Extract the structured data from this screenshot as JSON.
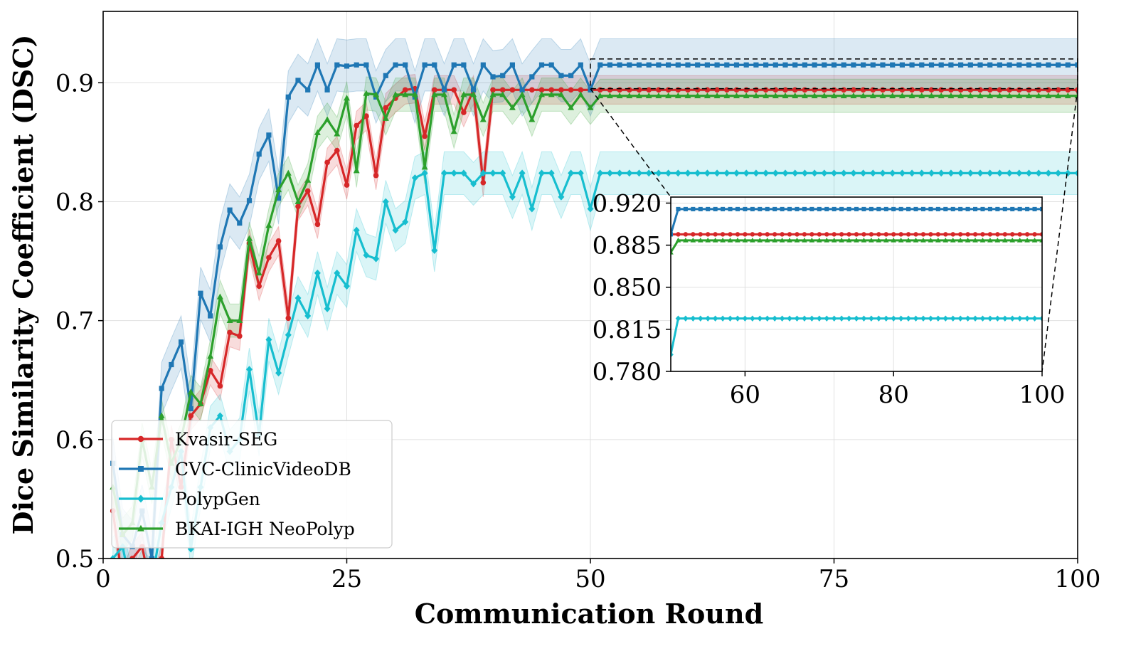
{
  "chart_data": {
    "type": "line",
    "title": "",
    "xlabel": "Communication Round",
    "ylabel": "Dice Similarity Coefficient (DSC)",
    "xlim": [
      0,
      100
    ],
    "ylim": [
      0.5,
      0.96
    ],
    "xticks": [
      "0",
      "25",
      "50",
      "75",
      "100"
    ],
    "yticks": [
      "0.5",
      "0.6",
      "0.7",
      "0.8",
      "0.9"
    ],
    "grid": true,
    "legend_position": "lower-left",
    "series": [
      {
        "name": "Kvasir-SEG",
        "color": "#d62728",
        "marker": "circle",
        "x": [
          1,
          2,
          3,
          4,
          5,
          6,
          7,
          8,
          9,
          10,
          11,
          12,
          13,
          14,
          15,
          16,
          17,
          18,
          19,
          20,
          21,
          22,
          23,
          24,
          25,
          26,
          27,
          28,
          29,
          30,
          31,
          32,
          33,
          34,
          35,
          36,
          37,
          38,
          39,
          40,
          41,
          42,
          43,
          44,
          45,
          46,
          47,
          48,
          49,
          50
        ],
        "y": [
          0.54,
          0.48,
          0.5,
          0.51,
          0.47,
          0.5,
          0.6,
          0.56,
          0.62,
          0.63,
          0.658,
          0.645,
          0.69,
          0.687,
          0.765,
          0.729,
          0.753,
          0.767,
          0.702,
          0.796,
          0.809,
          0.781,
          0.833,
          0.843,
          0.814,
          0.864,
          0.872,
          0.822,
          0.879,
          0.887,
          0.894,
          0.895,
          0.855,
          0.894,
          0.894,
          0.894,
          0.875,
          0.894,
          0.816,
          0.894,
          0.894,
          0.894,
          0.894,
          0.894,
          0.894,
          0.894,
          0.894,
          0.894,
          0.894,
          0.894
        ],
        "band": 0.012,
        "plateau_start": 50,
        "plateau_end": 100,
        "plateau": 0.894
      },
      {
        "name": "CVC-ClinicVideoDB",
        "color": "#1f77b4",
        "marker": "square",
        "x": [
          1,
          2,
          3,
          4,
          5,
          6,
          7,
          8,
          9,
          10,
          11,
          12,
          13,
          14,
          15,
          16,
          17,
          18,
          19,
          20,
          21,
          22,
          23,
          24,
          25,
          26,
          27,
          28,
          29,
          30,
          31,
          32,
          33,
          34,
          35,
          36,
          37,
          38,
          39,
          40,
          41,
          42,
          43,
          44,
          45,
          46,
          47,
          48,
          49,
          50
        ],
        "y": [
          0.58,
          0.52,
          0.51,
          0.54,
          0.5,
          0.643,
          0.663,
          0.682,
          0.626,
          0.723,
          0.704,
          0.762,
          0.793,
          0.782,
          0.801,
          0.84,
          0.856,
          0.803,
          0.888,
          0.902,
          0.894,
          0.915,
          0.894,
          0.915,
          0.914,
          0.915,
          0.915,
          0.888,
          0.906,
          0.915,
          0.915,
          0.888,
          0.915,
          0.915,
          0.894,
          0.915,
          0.915,
          0.894,
          0.915,
          0.905,
          0.906,
          0.915,
          0.894,
          0.905,
          0.915,
          0.915,
          0.906,
          0.906,
          0.915,
          0.894
        ],
        "band": 0.022,
        "plateau_start": 50,
        "plateau_end": 100,
        "plateau": 0.915
      },
      {
        "name": "PolypGen",
        "color": "#17becf",
        "marker": "diamond",
        "x": [
          1,
          2,
          3,
          4,
          5,
          6,
          7,
          8,
          9,
          10,
          11,
          12,
          13,
          14,
          15,
          16,
          17,
          18,
          19,
          20,
          21,
          22,
          23,
          24,
          25,
          26,
          27,
          28,
          29,
          30,
          31,
          32,
          33,
          34,
          35,
          36,
          37,
          38,
          39,
          40,
          41,
          42,
          43,
          44,
          45,
          46,
          47,
          48,
          49,
          50
        ],
        "y": [
          0.5,
          0.51,
          0.47,
          0.49,
          0.48,
          0.53,
          0.56,
          0.59,
          0.508,
          0.56,
          0.61,
          0.62,
          0.59,
          0.6,
          0.659,
          0.604,
          0.684,
          0.656,
          0.688,
          0.719,
          0.704,
          0.74,
          0.71,
          0.74,
          0.729,
          0.776,
          0.755,
          0.752,
          0.8,
          0.776,
          0.783,
          0.82,
          0.824,
          0.759,
          0.824,
          0.824,
          0.824,
          0.815,
          0.824,
          0.824,
          0.824,
          0.804,
          0.824,
          0.794,
          0.824,
          0.824,
          0.804,
          0.824,
          0.824,
          0.794
        ],
        "band": 0.018,
        "plateau_start": 50,
        "plateau_end": 100,
        "plateau": 0.824
      },
      {
        "name": "BKAI-IGH NeoPolyp",
        "color": "#2ca02c",
        "marker": "triangle",
        "x": [
          1,
          2,
          3,
          4,
          5,
          6,
          7,
          8,
          9,
          10,
          11,
          12,
          13,
          14,
          15,
          16,
          17,
          18,
          19,
          20,
          21,
          22,
          23,
          24,
          25,
          26,
          27,
          28,
          29,
          30,
          31,
          32,
          33,
          34,
          35,
          36,
          37,
          38,
          39,
          40,
          41,
          42,
          43,
          44,
          45,
          46,
          47,
          48,
          49,
          50
        ],
        "y": [
          0.56,
          0.52,
          0.53,
          0.6,
          0.56,
          0.62,
          0.58,
          0.6,
          0.64,
          0.63,
          0.67,
          0.72,
          0.7,
          0.7,
          0.769,
          0.74,
          0.78,
          0.81,
          0.824,
          0.8,
          0.818,
          0.858,
          0.869,
          0.857,
          0.887,
          0.826,
          0.891,
          0.89,
          0.87,
          0.89,
          0.89,
          0.89,
          0.829,
          0.89,
          0.89,
          0.859,
          0.89,
          0.89,
          0.869,
          0.89,
          0.89,
          0.879,
          0.89,
          0.869,
          0.89,
          0.89,
          0.89,
          0.879,
          0.89,
          0.879
        ],
        "band": 0.014,
        "plateau_start": 50,
        "plateau_end": 100,
        "plateau": 0.889
      }
    ],
    "inset": {
      "xlim": [
        50,
        100
      ],
      "ylim": [
        0.78,
        0.925
      ],
      "xticks": [
        "60",
        "80",
        "100"
      ],
      "yticks": [
        "0.780",
        "0.815",
        "0.850",
        "0.885",
        "0.920"
      ],
      "grid": true,
      "zoom_region": {
        "x": [
          50,
          100
        ],
        "y": [
          0.895,
          0.92
        ]
      }
    }
  }
}
